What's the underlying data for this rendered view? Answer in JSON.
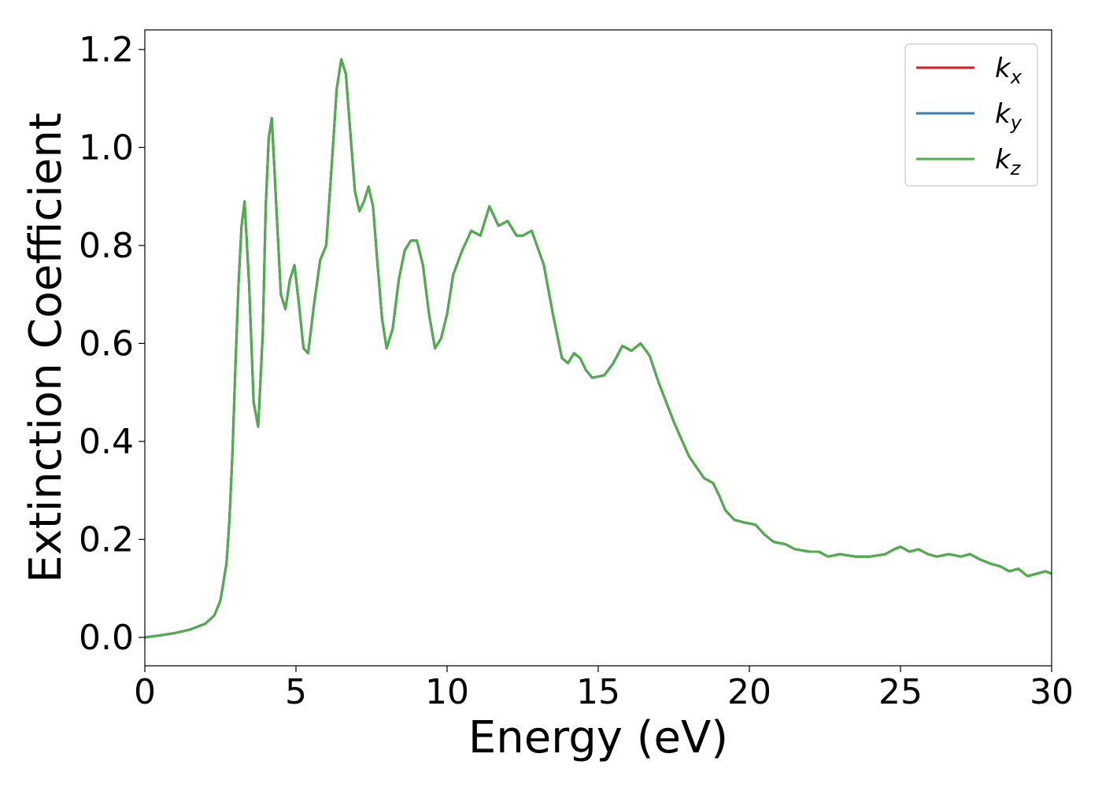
{
  "chart_data": {
    "type": "line",
    "title": "",
    "xlabel": "Energy (eV)",
    "ylabel": "Extinction Coefficient",
    "xlim": [
      0,
      30
    ],
    "ylim": [
      -0.058,
      1.24
    ],
    "xticks": [
      0,
      5,
      10,
      15,
      20,
      25,
      30
    ],
    "xtick_labels": [
      "0",
      "5",
      "10",
      "15",
      "20",
      "25",
      "30"
    ],
    "yticks": [
      0.0,
      0.2,
      0.4,
      0.6,
      0.8,
      1.0,
      1.2
    ],
    "ytick_labels": [
      "0.0",
      "0.2",
      "0.4",
      "0.6",
      "0.8",
      "1.0",
      "1.2"
    ],
    "grid": false,
    "legend_position": "top-right",
    "x": [
      0,
      0.5,
      1.0,
      1.5,
      2.0,
      2.3,
      2.5,
      2.7,
      2.8,
      2.9,
      3.0,
      3.1,
      3.2,
      3.3,
      3.45,
      3.6,
      3.75,
      3.9,
      4.0,
      4.1,
      4.2,
      4.35,
      4.5,
      4.65,
      4.8,
      4.95,
      5.1,
      5.25,
      5.4,
      5.6,
      5.8,
      6.0,
      6.2,
      6.35,
      6.5,
      6.65,
      6.8,
      6.95,
      7.1,
      7.25,
      7.4,
      7.55,
      7.7,
      7.85,
      8.0,
      8.2,
      8.4,
      8.6,
      8.8,
      9.0,
      9.2,
      9.4,
      9.6,
      9.8,
      10.0,
      10.2,
      10.5,
      10.8,
      11.1,
      11.4,
      11.7,
      12.0,
      12.3,
      12.5,
      12.8,
      13.2,
      13.5,
      13.8,
      14.0,
      14.2,
      14.4,
      14.6,
      14.8,
      15.2,
      15.5,
      15.8,
      16.1,
      16.4,
      16.7,
      17.0,
      17.5,
      18.0,
      18.5,
      18.8,
      19.0,
      19.2,
      19.5,
      19.8,
      20.2,
      20.5,
      20.8,
      21.2,
      21.5,
      22.0,
      22.3,
      22.6,
      23.0,
      23.5,
      24.0,
      24.5,
      24.8,
      25.0,
      25.3,
      25.6,
      25.9,
      26.2,
      26.6,
      27.0,
      27.3,
      27.6,
      28.0,
      28.3,
      28.6,
      28.9,
      29.2,
      29.5,
      29.8,
      30.0
    ],
    "series": [
      {
        "name": "k_x",
        "color": "#e41a1c",
        "values": [
          0.0,
          0.004,
          0.009,
          0.016,
          0.028,
          0.045,
          0.075,
          0.15,
          0.24,
          0.38,
          0.56,
          0.72,
          0.84,
          0.89,
          0.72,
          0.48,
          0.43,
          0.62,
          0.88,
          1.02,
          1.06,
          0.88,
          0.7,
          0.67,
          0.73,
          0.76,
          0.68,
          0.59,
          0.58,
          0.68,
          0.77,
          0.8,
          0.98,
          1.12,
          1.18,
          1.15,
          1.03,
          0.91,
          0.87,
          0.89,
          0.92,
          0.88,
          0.76,
          0.65,
          0.59,
          0.63,
          0.73,
          0.79,
          0.81,
          0.81,
          0.76,
          0.66,
          0.59,
          0.61,
          0.66,
          0.74,
          0.79,
          0.83,
          0.82,
          0.88,
          0.84,
          0.85,
          0.82,
          0.82,
          0.83,
          0.76,
          0.66,
          0.57,
          0.56,
          0.58,
          0.57,
          0.545,
          0.53,
          0.535,
          0.56,
          0.595,
          0.585,
          0.6,
          0.575,
          0.52,
          0.44,
          0.37,
          0.325,
          0.315,
          0.29,
          0.26,
          0.24,
          0.235,
          0.23,
          0.21,
          0.195,
          0.19,
          0.18,
          0.175,
          0.175,
          0.165,
          0.17,
          0.165,
          0.165,
          0.17,
          0.18,
          0.185,
          0.175,
          0.18,
          0.17,
          0.165,
          0.17,
          0.165,
          0.17,
          0.16,
          0.15,
          0.145,
          0.135,
          0.14,
          0.125,
          0.13,
          0.135,
          0.13
        ]
      },
      {
        "name": "k_y",
        "color": "#377eb8",
        "values": [
          0.0,
          0.004,
          0.009,
          0.016,
          0.028,
          0.045,
          0.075,
          0.15,
          0.24,
          0.38,
          0.56,
          0.72,
          0.84,
          0.89,
          0.72,
          0.48,
          0.43,
          0.62,
          0.88,
          1.02,
          1.06,
          0.88,
          0.7,
          0.67,
          0.73,
          0.76,
          0.68,
          0.59,
          0.58,
          0.68,
          0.77,
          0.8,
          0.98,
          1.12,
          1.18,
          1.15,
          1.03,
          0.91,
          0.87,
          0.89,
          0.92,
          0.88,
          0.76,
          0.65,
          0.59,
          0.63,
          0.73,
          0.79,
          0.81,
          0.81,
          0.76,
          0.66,
          0.59,
          0.61,
          0.66,
          0.74,
          0.79,
          0.83,
          0.82,
          0.88,
          0.84,
          0.85,
          0.82,
          0.82,
          0.83,
          0.76,
          0.66,
          0.57,
          0.56,
          0.58,
          0.57,
          0.545,
          0.53,
          0.535,
          0.56,
          0.595,
          0.585,
          0.6,
          0.575,
          0.52,
          0.44,
          0.37,
          0.325,
          0.315,
          0.29,
          0.26,
          0.24,
          0.235,
          0.23,
          0.21,
          0.195,
          0.19,
          0.18,
          0.175,
          0.175,
          0.165,
          0.17,
          0.165,
          0.165,
          0.17,
          0.18,
          0.185,
          0.175,
          0.18,
          0.17,
          0.165,
          0.17,
          0.165,
          0.17,
          0.16,
          0.15,
          0.145,
          0.135,
          0.14,
          0.125,
          0.13,
          0.135,
          0.13
        ]
      },
      {
        "name": "k_z",
        "color": "#4daf4a",
        "values": [
          0.0,
          0.004,
          0.009,
          0.016,
          0.028,
          0.045,
          0.075,
          0.15,
          0.24,
          0.38,
          0.56,
          0.72,
          0.84,
          0.89,
          0.72,
          0.48,
          0.43,
          0.62,
          0.88,
          1.02,
          1.06,
          0.88,
          0.7,
          0.67,
          0.73,
          0.76,
          0.68,
          0.59,
          0.58,
          0.68,
          0.77,
          0.8,
          0.98,
          1.12,
          1.18,
          1.15,
          1.03,
          0.91,
          0.87,
          0.89,
          0.92,
          0.88,
          0.76,
          0.65,
          0.59,
          0.63,
          0.73,
          0.79,
          0.81,
          0.81,
          0.76,
          0.66,
          0.59,
          0.61,
          0.66,
          0.74,
          0.79,
          0.83,
          0.82,
          0.88,
          0.84,
          0.85,
          0.82,
          0.82,
          0.83,
          0.76,
          0.66,
          0.57,
          0.56,
          0.58,
          0.57,
          0.545,
          0.53,
          0.535,
          0.56,
          0.595,
          0.585,
          0.6,
          0.575,
          0.52,
          0.44,
          0.37,
          0.325,
          0.315,
          0.29,
          0.26,
          0.24,
          0.235,
          0.23,
          0.21,
          0.195,
          0.19,
          0.18,
          0.175,
          0.175,
          0.165,
          0.17,
          0.165,
          0.165,
          0.17,
          0.18,
          0.185,
          0.175,
          0.18,
          0.17,
          0.165,
          0.17,
          0.165,
          0.17,
          0.16,
          0.15,
          0.145,
          0.135,
          0.14,
          0.125,
          0.13,
          0.135,
          0.13
        ]
      }
    ],
    "legend": [
      {
        "base": "k",
        "sub": "x",
        "color": "#e41a1c"
      },
      {
        "base": "k",
        "sub": "y",
        "color": "#377eb8"
      },
      {
        "base": "k",
        "sub": "z",
        "color": "#4daf4a"
      }
    ]
  }
}
